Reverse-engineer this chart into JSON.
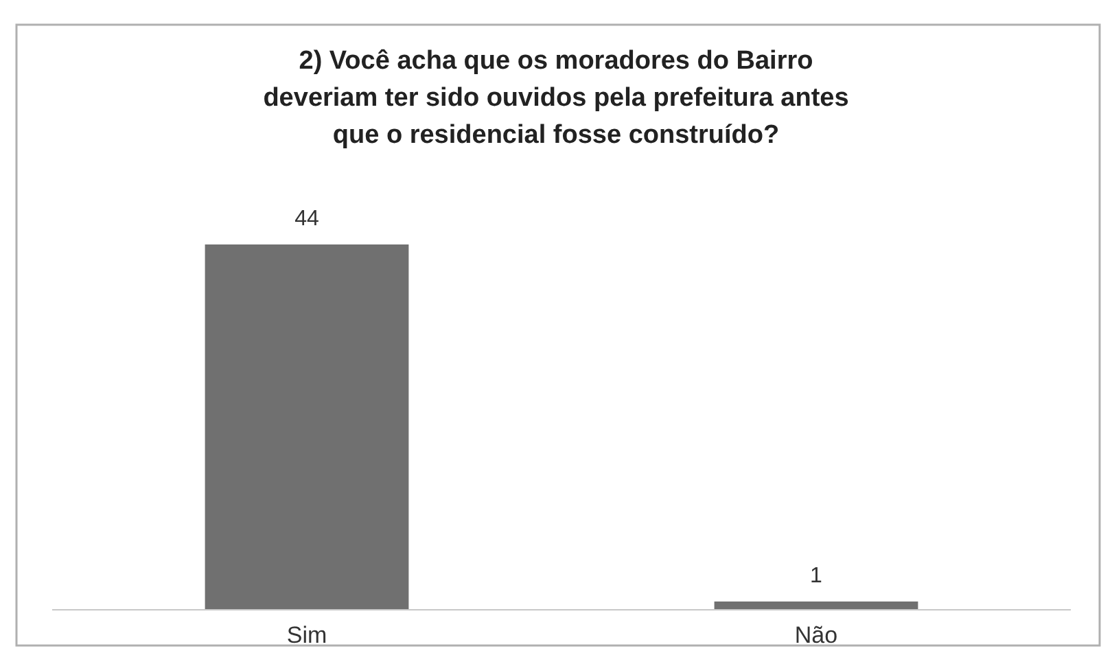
{
  "chart_data": {
    "type": "bar",
    "title": "2) Você acha que os moradores do Bairro\ndeveriam ter sido ouvidos pela prefeitura antes\nque o residencial fosse construído?",
    "categories": [
      "Sim",
      "Não"
    ],
    "values": [
      44,
      1
    ],
    "color": "#707070",
    "data_labels": true
  }
}
